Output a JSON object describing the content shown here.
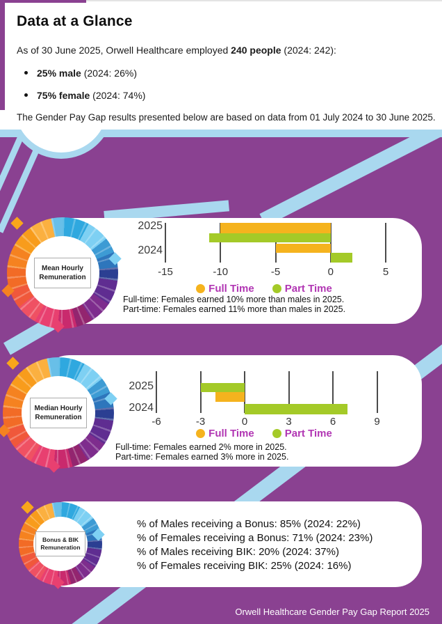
{
  "header": {
    "title": "Data at a Glance",
    "intro_pre": "As of 30 June 2025, Orwell Healthcare employed ",
    "intro_bold": "240 people",
    "intro_post": " (2024: 242):",
    "bullets": [
      {
        "bold": "25% male",
        "rest": " (2024: 26%)"
      },
      {
        "bold": "75% female",
        "rest": " (2024: 74%)"
      }
    ],
    "period_note": "The Gender Pay Gap results presented below are based on data from 01 July 2024 to 30 June 2025."
  },
  "colors": {
    "purple_background": "#8A4191",
    "light_blue_accent": "#A9D8EF",
    "full_time": "#F5B31E",
    "part_time": "#A4CA28",
    "legend_text": "#B136B3"
  },
  "rings": [
    {
      "label": "Mean Hourly Remuneration"
    },
    {
      "label": "Median Hourly Remuneration"
    },
    {
      "label": "Bonus & BIK Remuneration"
    }
  ],
  "legend": {
    "full_time": "Full Time",
    "part_time": "Part Time"
  },
  "notes": {
    "mean": [
      "Full-time: Females earned 10% more than males in 2025.",
      "Part-time: Females earned 11% more than males in 2025."
    ],
    "median": [
      "Full-time: Females earned 2% more in 2025.",
      "Part-time: Females earned 3% more in 2025."
    ]
  },
  "bonus": {
    "lines": [
      "% of Males receiving a Bonus: 85% (2024: 22%)",
      "% of Females receiving a Bonus: 71% (2024: 23%)",
      "% of Males receiving BIK: 20% (2024: 37%)",
      "% of Females receiving BIK: 25% (2024: 16%)"
    ]
  },
  "footer": "Orwell Healthcare Gender Pay Gap Report 2025",
  "chart_data": [
    {
      "type": "bar",
      "orientation": "horizontal",
      "title": "Mean Hourly Remuneration",
      "categories": [
        "2025",
        "2024"
      ],
      "series": [
        {
          "name": "Full Time",
          "values": [
            -10,
            -5
          ]
        },
        {
          "name": "Part Time",
          "values": [
            -11,
            2
          ]
        }
      ],
      "xlim": [
        -15,
        5
      ],
      "xticks": [
        -15,
        -10,
        -5,
        0,
        5
      ],
      "grid": true,
      "legend_position": "bottom",
      "bars": [
        {
          "category": "2025",
          "series": "Full Time",
          "value": -10
        },
        {
          "category": "2025",
          "series": "Part Time",
          "value": -11
        },
        {
          "category": "2024",
          "series": "Full Time",
          "value": -5
        },
        {
          "category": "2024",
          "series": "Part Time",
          "value": 2
        }
      ]
    },
    {
      "type": "bar",
      "orientation": "horizontal",
      "title": "Median Hourly Remuneration",
      "categories": [
        "2025",
        "2024"
      ],
      "series": [
        {
          "name": "Full Time",
          "values": [
            -2,
            0
          ]
        },
        {
          "name": "Part Time",
          "values": [
            -3,
            7
          ]
        }
      ],
      "xlim": [
        -6,
        9
      ],
      "xticks": [
        -6,
        -3,
        0,
        3,
        6,
        9
      ],
      "grid": true,
      "legend_position": "bottom",
      "bars": [
        {
          "category": "2025",
          "series": "Part Time",
          "value": -3
        },
        {
          "category": "2025",
          "series": "Full Time",
          "value": -2
        },
        {
          "category": "2024",
          "series": "Full Time",
          "value": 0
        },
        {
          "category": "2024",
          "series": "Part Time",
          "value": 7
        }
      ]
    }
  ]
}
